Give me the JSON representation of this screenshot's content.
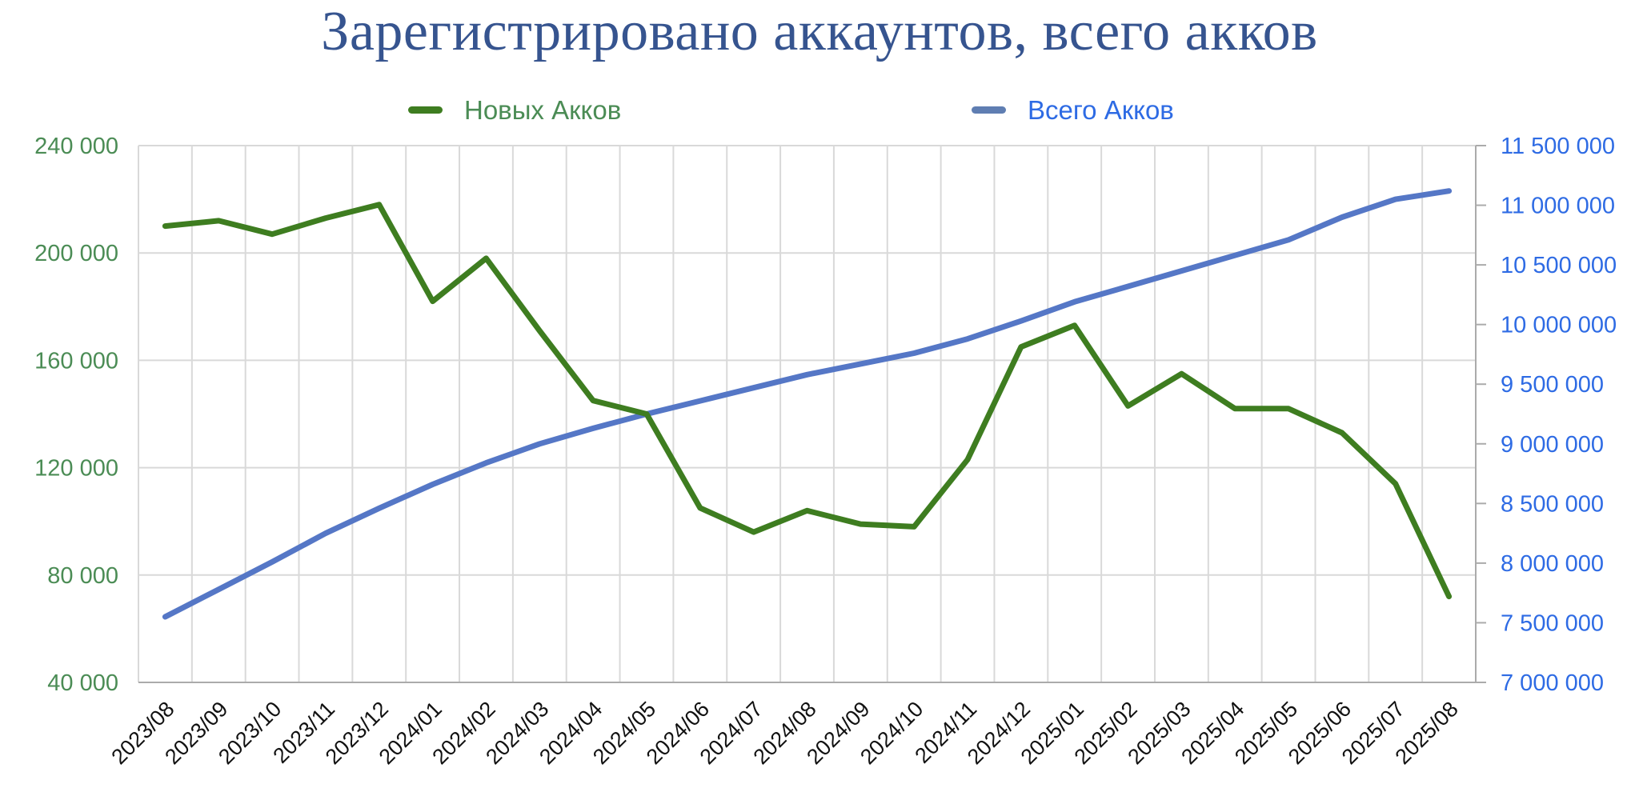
{
  "colors": {
    "title": "#36548F",
    "grid": "#D9D9D9",
    "axis": "#ABABAB",
    "x_labels": "#111111",
    "background": "#FFFFFF"
  },
  "chart_data": {
    "type": "line",
    "title": "Зарегистрировано аккаунтов, всего акков",
    "legend_position": "top",
    "grid": true,
    "categories": [
      "2023/08",
      "2023/09",
      "2023/10",
      "2023/11",
      "2023/12",
      "2024/01",
      "2024/02",
      "2024/03",
      "2024/04",
      "2024/05",
      "2024/06",
      "2024/07",
      "2024/08",
      "2024/09",
      "2024/10",
      "2024/11",
      "2024/12",
      "2025/01",
      "2025/02",
      "2025/03",
      "2025/04",
      "2025/05",
      "2025/06",
      "2025/07",
      "2025/08"
    ],
    "series": [
      {
        "id": "new-accounts",
        "name": "Новых Акков",
        "axis": "left",
        "color": "#3E7D20",
        "marker_color": "#3E7D20",
        "label_color": "#4B8C55",
        "values": [
          210000,
          212000,
          207000,
          213000,
          218000,
          182000,
          198000,
          171000,
          145000,
          140000,
          105000,
          96000,
          104000,
          99000,
          98000,
          123000,
          165000,
          173000,
          143000,
          155000,
          142000,
          142000,
          133000,
          114000,
          72000
        ]
      },
      {
        "id": "total-accounts",
        "name": "Всего Акков",
        "axis": "right",
        "color": "#5577C6",
        "marker_color": "#5F7EB2",
        "label_color": "#2E6BE4",
        "values": [
          7550000,
          7780000,
          8010000,
          8250000,
          8460000,
          8660000,
          8840000,
          9000000,
          9130000,
          9250000,
          9360000,
          9470000,
          9580000,
          9670000,
          9760000,
          9880000,
          10030000,
          10190000,
          10320000,
          10450000,
          10580000,
          10710000,
          10900000,
          11050000,
          11120000
        ]
      }
    ],
    "left_axis": {
      "min": 40000,
      "max": 240000,
      "step": 40000,
      "color": "#4B8C55",
      "tick_labels": [
        "240 000",
        "200 000",
        "160 000",
        "120 000",
        "80 000",
        "40 000"
      ]
    },
    "right_axis": {
      "min": 7000000,
      "max": 11500000,
      "step": 500000,
      "color": "#2E6BE4",
      "tick_labels": [
        "11 500 000",
        "11 000 000",
        "10 500 000",
        "10 000 000",
        "9 500 000",
        "9 000 000",
        "8 500 000",
        "8 000 000",
        "7 500 000",
        "7 000 000"
      ]
    }
  }
}
